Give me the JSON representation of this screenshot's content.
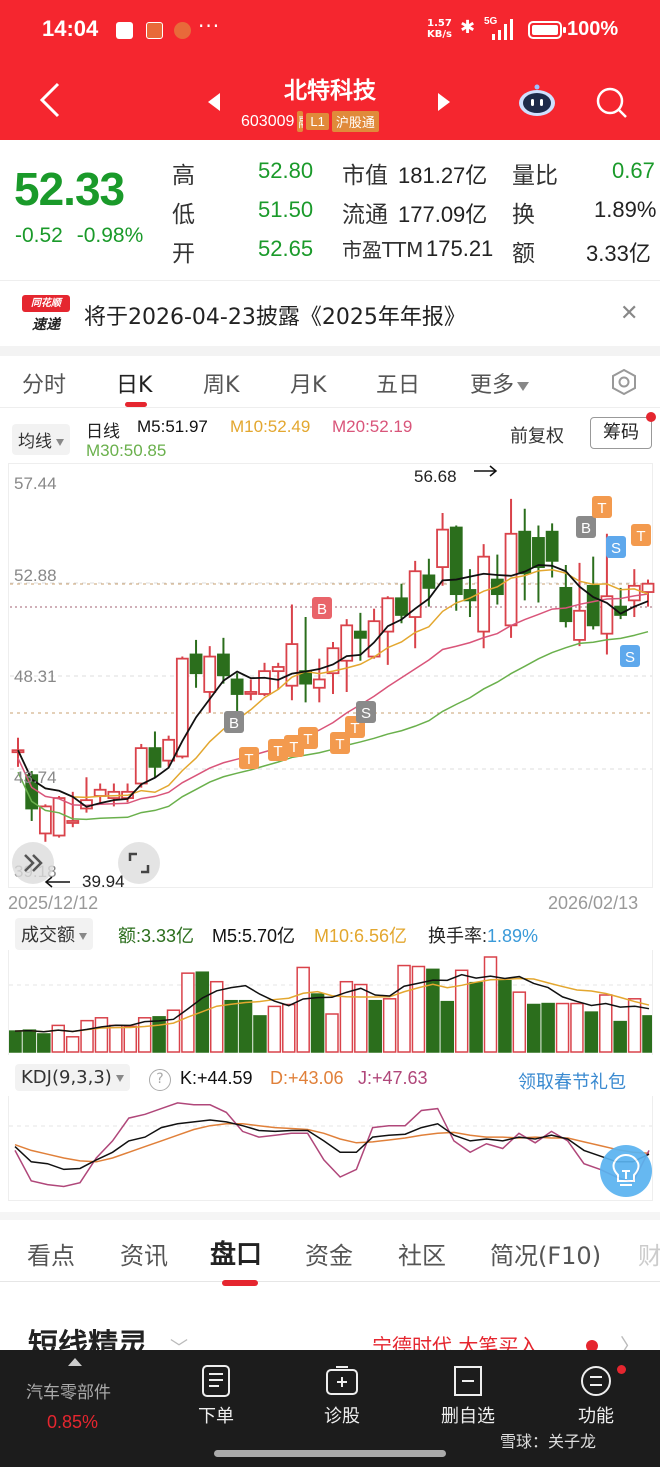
{
  "status_bar": {
    "time": "14:04",
    "net_speed_top": "1.57",
    "net_speed_bottom": "KB/s",
    "network": "5G",
    "battery": "100%"
  },
  "header": {
    "title": "北特科技",
    "code": "603009",
    "tags": [
      "融",
      "L1",
      "沪股通"
    ]
  },
  "quote": {
    "price": "52.33",
    "change": "-0.52",
    "change_pct": "-0.98%",
    "rows": [
      {
        "l1": "高",
        "v1": "52.80",
        "l2": "市值",
        "v2": "181.27亿",
        "l3": "量比",
        "v3": "0.67"
      },
      {
        "l1": "低",
        "v1": "51.50",
        "l2": "流通",
        "v2": "177.09亿",
        "l3": "换",
        "v3": "1.89%"
      },
      {
        "l1": "开",
        "v1": "52.65",
        "l2": "市盈TTM",
        "v2": "175.21",
        "l3": "额",
        "v3": "3.33亿"
      }
    ]
  },
  "notice": {
    "logo_top": "同花顺",
    "logo_bottom": "速递",
    "text": "将于2026-04-23披露《2025年年报》"
  },
  "kline_tabs": {
    "items": [
      "分时",
      "日K",
      "周K",
      "月K",
      "五日",
      "更多"
    ],
    "active": "日K"
  },
  "ma_legend": {
    "selector": "均线",
    "period": "日线",
    "m5": "M5:51.97",
    "m10": "M10:52.49",
    "m20": "M20:52.19",
    "m30": "M30:50.85",
    "adjust": "前复权",
    "chips": "筹码"
  },
  "colors": {
    "up": "#d9424a",
    "down": "#2b6e1c",
    "m5": "#111111",
    "m10": "#e3a72f",
    "m20": "#d9557a",
    "m30": "#6ab04c",
    "accent": "#f5262f"
  },
  "chart_data": {
    "type": "candlestick",
    "y_ticks": [
      "57.44",
      "52.88",
      "48.31",
      "43.74",
      "39.18"
    ],
    "max_label": "56.68",
    "min_label": "39.94",
    "start_date": "2025/12/12",
    "end_date": "2026/02/13",
    "markers": [
      "B",
      "T",
      "T",
      "T",
      "T",
      "T",
      "T",
      "B",
      "S",
      "B",
      "T",
      "S",
      "T",
      "S"
    ]
  },
  "volume": {
    "selector": "成交额",
    "amount": "额:3.33亿",
    "m5": "M5:5.70亿",
    "m10": "M10:6.56亿",
    "turnover_label": "换手率:",
    "turnover": "1.89%"
  },
  "kdj": {
    "selector": "KDJ(9,3,3)",
    "k": "K:+44.59",
    "d": "D:+43.06",
    "j": "J:+47.63",
    "promo": "领取春节礼包"
  },
  "bottom_tabs": {
    "items": [
      "看点",
      "资讯",
      "盘口",
      "资金",
      "社区",
      "简况(F10)",
      "财"
    ],
    "active": "盘口"
  },
  "short_sprite": {
    "title": "短线精灵",
    "right_text": "宁德时代  大笔买入"
  },
  "bottom_bar": {
    "sector": "汽车零部件",
    "sector_pct": "0.85%",
    "items": [
      "下单",
      "诊股",
      "删自选",
      "功能"
    ],
    "watermark": "雪球：关子龙"
  }
}
